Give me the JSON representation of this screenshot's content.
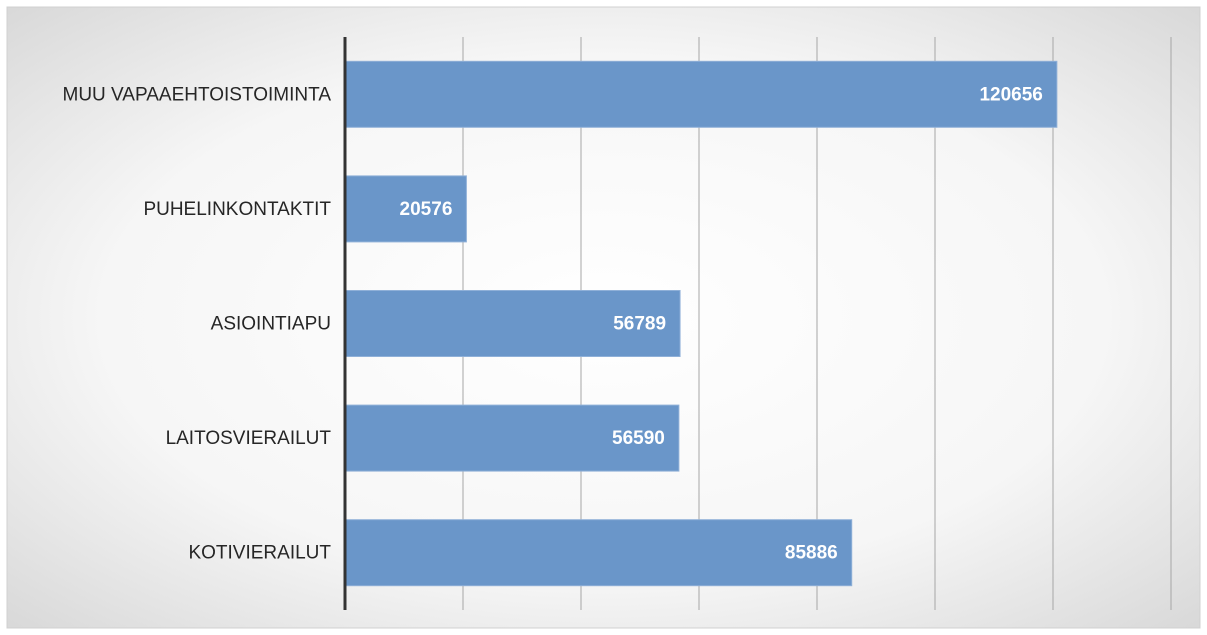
{
  "chart_data": {
    "type": "barh",
    "categories": [
      "MUU VAPAAEHTOISTOIMINTA",
      "PUHELINKONTAKTIT",
      "ASIOINTIAPU",
      "LAITOSVIERAILUT",
      "KOTIVIERAILUT"
    ],
    "values": [
      120656,
      20576,
      56789,
      56590,
      85886
    ],
    "color": "#6a96c9",
    "xlim": [
      0,
      140000
    ],
    "xticks": [
      0,
      20000,
      40000,
      60000,
      80000,
      100000,
      120000,
      140000
    ],
    "grid": true
  }
}
